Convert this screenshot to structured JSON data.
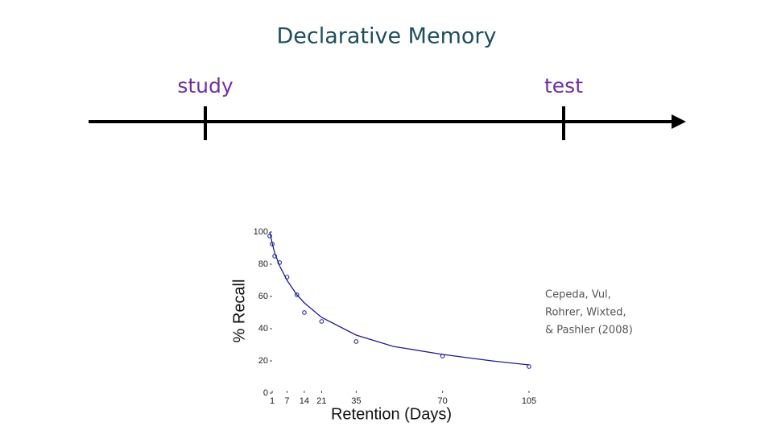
{
  "slide": {
    "title": "Declarative Memory",
    "timeline_start": "study",
    "timeline_end": "test",
    "citation": [
      "Cepeda, Vul,",
      "Rohrer, Wixted,",
      "& Pashler (2008)"
    ]
  },
  "chart_data": {
    "type": "scatter",
    "x_label": "Retention (Days)",
    "y_label": "% Recall",
    "xlim": [
      0,
      105
    ],
    "ylim": [
      0,
      100
    ],
    "xticks": [
      1,
      7,
      14,
      21,
      35,
      70,
      105
    ],
    "yticks": [
      0,
      20,
      40,
      60,
      80,
      100
    ],
    "series": [
      {
        "style": "markers",
        "color": "#2a3aa8",
        "x": [
          0,
          1,
          2,
          4,
          7,
          11,
          14,
          21,
          35,
          70,
          105
        ],
        "values": [
          97.5,
          92.5,
          85,
          81,
          72,
          61,
          50,
          44.5,
          32,
          23,
          16.5
        ]
      },
      {
        "style": "line",
        "color": "#1c1c8c",
        "x": [
          0,
          1,
          2,
          4,
          7,
          11,
          14,
          21,
          35,
          50,
          70,
          90,
          105
        ],
        "values": [
          100,
          93,
          87,
          79,
          70,
          61,
          56,
          47,
          36,
          29,
          24,
          20,
          17.5
        ]
      }
    ]
  }
}
